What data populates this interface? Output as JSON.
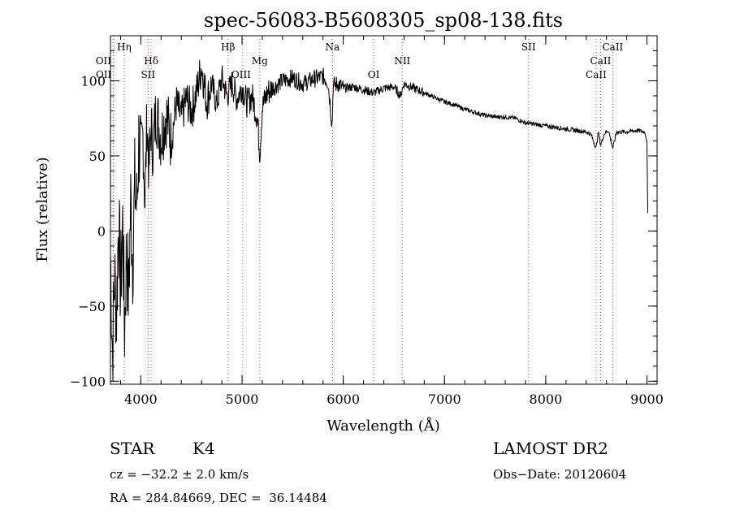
{
  "chart_data": {
    "type": "line",
    "title": "spec-56083-B5608305_sp08-138.fits",
    "xlabel": "Wavelength (Å)",
    "ylabel": "Flux (relative)",
    "xlim": [
      3700,
      9100
    ],
    "ylim": [
      -102,
      130
    ],
    "xticks": [
      4000,
      5000,
      6000,
      7000,
      8000,
      9000
    ],
    "yticks": [
      -100,
      -50,
      0,
      50,
      100
    ],
    "xtick_labels": [
      "4000",
      "5000",
      "6000",
      "7000",
      "8000",
      "9000"
    ],
    "ytick_labels": [
      "−100",
      "−50",
      "0",
      "50",
      "100"
    ],
    "grid": false,
    "series": [
      {
        "values_x": [
          3700,
          3720,
          3740,
          3760,
          3780,
          3800,
          3820,
          3840,
          3860,
          3880,
          3900,
          3920,
          3940,
          3960,
          3980,
          4000,
          4020,
          4040,
          4060,
          4080,
          4100,
          4120,
          4150,
          4200,
          4250,
          4300,
          4350,
          4400,
          4450,
          4500,
          4550,
          4600,
          4650,
          4700,
          4750,
          4800,
          4850,
          4900,
          4950,
          5000,
          5050,
          5100,
          5150,
          5175,
          5200,
          5250,
          5300,
          5400,
          5500,
          5600,
          5700,
          5800,
          5850,
          5890,
          5900,
          5950,
          6000,
          6100,
          6200,
          6300,
          6400,
          6500,
          6563,
          6600,
          6700,
          6800,
          6900,
          7000,
          7100,
          7200,
          7300,
          7400,
          7500,
          7600,
          7700,
          7800,
          7900,
          8000,
          8100,
          8200,
          8300,
          8400,
          8450,
          8498,
          8520,
          8542,
          8580,
          8620,
          8662,
          8700,
          8800,
          8900,
          8980,
          9000,
          9010
        ],
        "values_y": [
          -15,
          -80,
          -30,
          -55,
          10,
          -40,
          5,
          -65,
          -10,
          -45,
          20,
          -20,
          30,
          15,
          60,
          50,
          65,
          20,
          75,
          40,
          70,
          55,
          80,
          62,
          78,
          60,
          85,
          75,
          88,
          80,
          92,
          110,
          86,
          98,
          84,
          102,
          90,
          98,
          88,
          96,
          85,
          90,
          75,
          52,
          82,
          92,
          95,
          100,
          102,
          98,
          101,
          103,
          99,
          70,
          97,
          98,
          95,
          96,
          94,
          92,
          95,
          96,
          90,
          98,
          95,
          92,
          89,
          86,
          84,
          81,
          79,
          77,
          76,
          76,
          75,
          72,
          71,
          70,
          69,
          68,
          67,
          66,
          64,
          55,
          66,
          57,
          65,
          67,
          55,
          66,
          66,
          67,
          66,
          60,
          0
        ]
      }
    ],
    "line_markers": [
      {
        "label": "Hη",
        "wavelength": 3835
      },
      {
        "label": "OII",
        "wavelength": 3727
      },
      {
        "label": "OII",
        "wavelength": 3729
      },
      {
        "label": "Hδ",
        "wavelength": 4102
      },
      {
        "label": "SII",
        "wavelength": 4072
      },
      {
        "label": "Hβ",
        "wavelength": 4861
      },
      {
        "label": "OIII",
        "wavelength": 5007
      },
      {
        "label": "Mg",
        "wavelength": 5175
      },
      {
        "label": "Na",
        "wavelength": 5893
      },
      {
        "label": "OI",
        "wavelength": 6300
      },
      {
        "label": "NII",
        "wavelength": 6583
      },
      {
        "label": "SII",
        "wavelength": 7830
      },
      {
        "label": "CaII",
        "wavelength": 8662
      },
      {
        "label": "CaII",
        "wavelength": 8542
      },
      {
        "label": "CaII",
        "wavelength": 8498
      }
    ]
  },
  "info": {
    "object_class": "STAR",
    "subclass": "K4",
    "survey": "LAMOST DR2",
    "cz": "cz = −32.2 ± 2.0 km/s",
    "obs_date": "Obs−Date: 20120604",
    "radec": "RA = 284.84669, DEC =  36.14484"
  }
}
